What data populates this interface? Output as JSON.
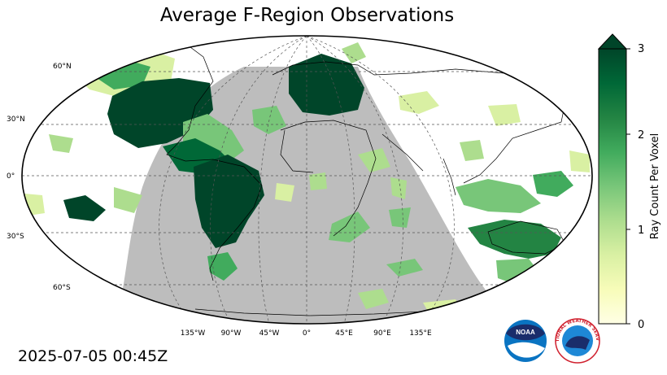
{
  "title": "Average F-Region Observations",
  "timestamp": "2025-07-05 00:45Z",
  "map": {
    "projection": "robinson",
    "lat_labels": [
      "60°N",
      "30°N",
      "0°",
      "30°S",
      "60°S"
    ],
    "lon_labels": [
      "135°W",
      "90°W",
      "45°W",
      "0°",
      "45°E",
      "90°E",
      "135°E"
    ]
  },
  "colorbar": {
    "label": "Ray Count Per Voxel",
    "ticks": [
      "0",
      "1",
      "2",
      "3"
    ],
    "range": [
      0,
      3
    ],
    "extend": "max",
    "colors": [
      "#ffffe5",
      "#f7fcb9",
      "#d9f0a3",
      "#addd8e",
      "#78c679",
      "#41ab5d",
      "#238443",
      "#006837",
      "#004529"
    ]
  },
  "colors": {
    "night_shade": "#bdbdbd",
    "ocean": "#ffffff",
    "coast": "#000000"
  },
  "logos": {
    "noaa": "NOAA",
    "nws": "NATIONAL WEATHER SERVICE"
  }
}
